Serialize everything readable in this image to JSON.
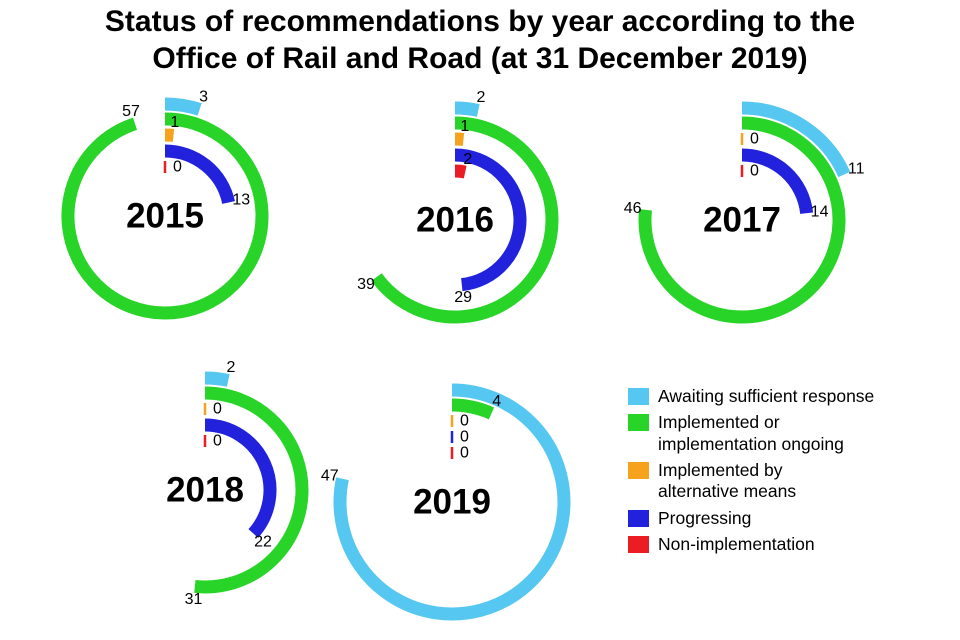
{
  "title": {
    "line1": "Status of recommendations by year according to the",
    "line2": "Office of Rail and Road (at 31 December 2019)"
  },
  "colors": {
    "awaiting": "#55C7F0",
    "implemented": "#28D428",
    "alternative": "#F7A21D",
    "progressing": "#2222DD",
    "non_implementation": "#EC1C24"
  },
  "legend": [
    {
      "key": "awaiting",
      "label": "Awaiting sufficient response"
    },
    {
      "key": "implemented",
      "label": "Implemented or\nimplementation ongoing"
    },
    {
      "key": "alternative",
      "label": "Implemented by\nalternative means"
    },
    {
      "key": "progressing",
      "label": "Progressing"
    },
    {
      "key": "non_implementation",
      "label": "Non-implementation"
    }
  ],
  "chart_data": {
    "type": "radial-arc-donut",
    "title": "Status of recommendations by year according to the Office of Rail and Road (at 31 December 2019)",
    "unit_degrees": 6,
    "scale_note": "each arc sweeps clockwise from 12 o'clock, 6 degrees per recommendation; zero values shown as a tick at 12 o'clock",
    "rings_outer_to_inner": [
      "awaiting",
      "implemented",
      "alternative",
      "progressing",
      "non_implementation"
    ],
    "categories": [
      "Awaiting sufficient response",
      "Implemented or implementation ongoing",
      "Implemented by alternative means",
      "Progressing",
      "Non-implementation"
    ],
    "years": [
      {
        "year": "2015",
        "values": {
          "awaiting": 3,
          "implemented": 57,
          "alternative": 1,
          "progressing": 13,
          "non_implementation": 0
        }
      },
      {
        "year": "2016",
        "values": {
          "awaiting": 2,
          "implemented": 39,
          "alternative": 1,
          "progressing": 29,
          "non_implementation": 2
        }
      },
      {
        "year": "2017",
        "values": {
          "awaiting": 11,
          "implemented": 46,
          "alternative": 0,
          "progressing": 14,
          "non_implementation": 0
        }
      },
      {
        "year": "2018",
        "values": {
          "awaiting": 2,
          "implemented": 31,
          "alternative": 0,
          "progressing": 22,
          "non_implementation": 0
        }
      },
      {
        "year": "2019",
        "values": {
          "awaiting": 47,
          "implemented": 4,
          "alternative": 0,
          "progressing": 0,
          "non_implementation": 0
        }
      }
    ]
  }
}
